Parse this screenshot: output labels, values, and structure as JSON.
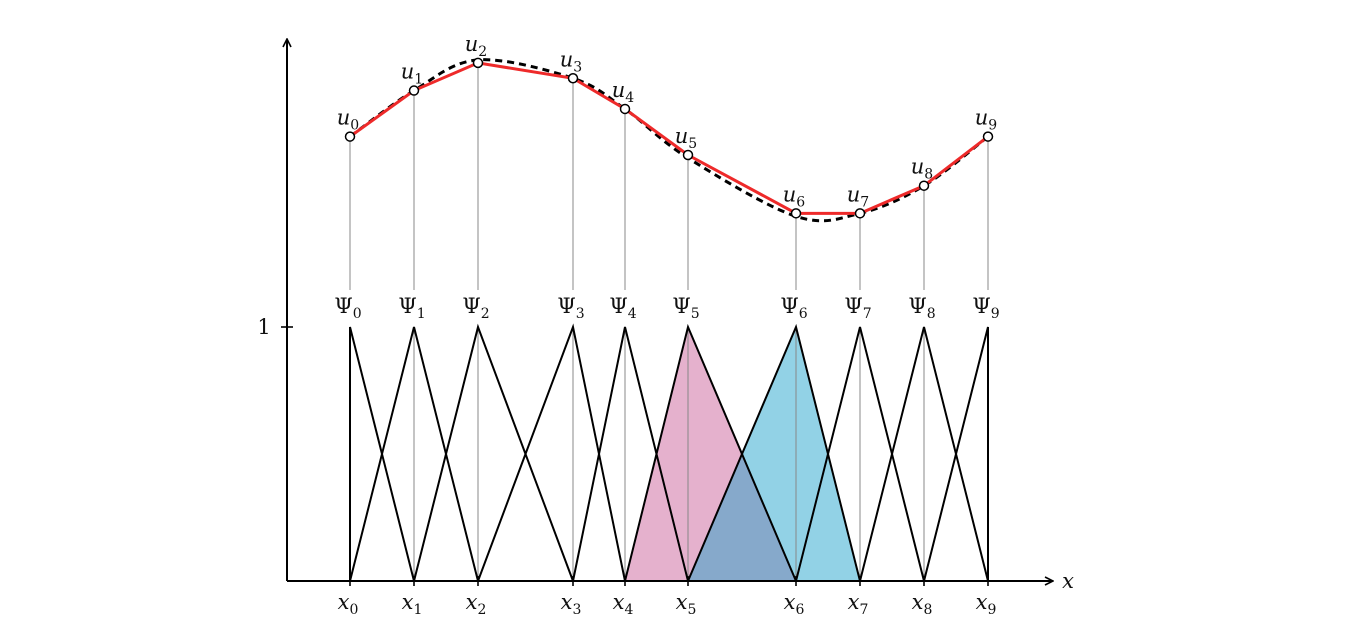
{
  "axis": {
    "x_label": "x",
    "y_tick_label": "1"
  },
  "nodes": [
    {
      "x": "x",
      "x_sub": "0",
      "u": "u",
      "u_sub": "0",
      "psi": "Ψ",
      "psi_sub": "0",
      "x_pos": 0.0,
      "u_val": 0.63
    },
    {
      "x": "x",
      "x_sub": "1",
      "u": "u",
      "u_sub": "1",
      "psi": "Ψ",
      "psi_sub": "1",
      "x_pos": 0.64,
      "u_val": 0.78
    },
    {
      "x": "x",
      "x_sub": "2",
      "u": "u",
      "u_sub": "2",
      "psi": "Ψ",
      "psi_sub": "2",
      "x_pos": 1.28,
      "u_val": 0.87
    },
    {
      "x": "x",
      "x_sub": "3",
      "u": "u",
      "u_sub": "3",
      "psi": "Ψ",
      "psi_sub": "3",
      "x_pos": 2.23,
      "u_val": 0.82
    },
    {
      "x": "x",
      "x_sub": "4",
      "u": "u",
      "u_sub": "4",
      "psi": "Ψ",
      "psi_sub": "4",
      "x_pos": 2.75,
      "u_val": 0.72
    },
    {
      "x": "x",
      "x_sub": "5",
      "u": "u",
      "u_sub": "5",
      "psi": "Ψ",
      "psi_sub": "5",
      "x_pos": 3.38,
      "u_val": 0.57
    },
    {
      "x": "x",
      "x_sub": "6",
      "u": "u",
      "u_sub": "6",
      "psi": "Ψ",
      "psi_sub": "6",
      "x_pos": 4.46,
      "u_val": 0.38
    },
    {
      "x": "x",
      "x_sub": "7",
      "u": "u",
      "u_sub": "7",
      "psi": "Ψ",
      "psi_sub": "7",
      "x_pos": 5.1,
      "u_val": 0.38
    },
    {
      "x": "x",
      "x_sub": "8",
      "u": "u",
      "u_sub": "8",
      "psi": "Ψ",
      "psi_sub": "8",
      "x_pos": 5.74,
      "u_val": 0.47
    },
    {
      "x": "x",
      "x_sub": "9",
      "u": "u",
      "u_sub": "9",
      "psi": "Ψ",
      "psi_sub": "9",
      "x_pos": 6.38,
      "u_val": 0.63
    }
  ],
  "highlighted": [
    {
      "index": 5,
      "color": "#e2a8c8"
    },
    {
      "index": 6,
      "color": "#86cde3"
    }
  ],
  "colors": {
    "interpolant": "#ee2a2a",
    "exact_curve": "#000000",
    "axes": "#000000",
    "hat_lines": "#000000",
    "guide_lines": "#888888",
    "overlap": "#86a9cb"
  }
}
